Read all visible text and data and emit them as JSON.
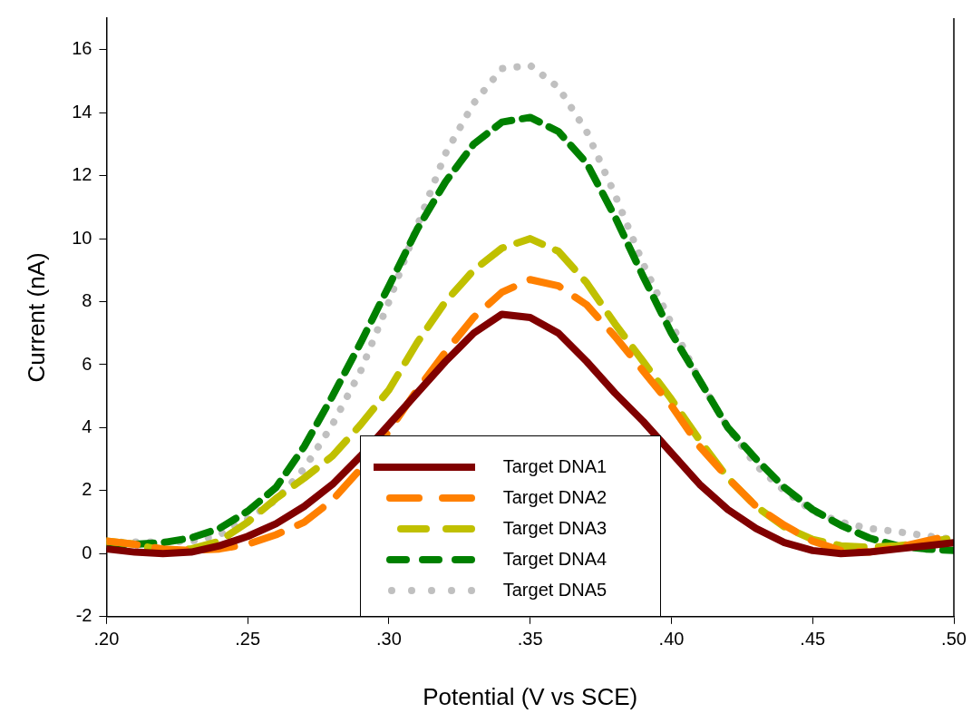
{
  "chart_data": {
    "type": "line",
    "xlabel": "Potential (V vs SCE)",
    "ylabel": "Current (nA)",
    "x": [
      0.2,
      0.21,
      0.22,
      0.23,
      0.24,
      0.25,
      0.26,
      0.27,
      0.28,
      0.29,
      0.3,
      0.31,
      0.32,
      0.33,
      0.34,
      0.35,
      0.36,
      0.37,
      0.38,
      0.39,
      0.4,
      0.41,
      0.42,
      0.43,
      0.44,
      0.45,
      0.46,
      0.47,
      0.48,
      0.49,
      0.5
    ],
    "series": [
      {
        "name": "Target DNA1",
        "color": "#800000",
        "line_style": "solid",
        "values": [
          0.15,
          0.05,
          0.0,
          0.05,
          0.25,
          0.55,
          0.95,
          1.5,
          2.2,
          3.1,
          4.1,
          5.1,
          6.1,
          7.0,
          7.6,
          7.5,
          7.0,
          6.1,
          5.1,
          4.2,
          3.2,
          2.2,
          1.4,
          0.8,
          0.35,
          0.1,
          0.0,
          0.05,
          0.15,
          0.25,
          0.35
        ]
      },
      {
        "name": "Target DNA2",
        "color": "#ff8000",
        "line_style": "dashed",
        "values": [
          0.4,
          0.3,
          0.15,
          0.1,
          0.15,
          0.3,
          0.6,
          1.0,
          1.7,
          2.7,
          3.9,
          5.2,
          6.4,
          7.5,
          8.3,
          8.7,
          8.5,
          7.9,
          6.9,
          5.8,
          4.7,
          3.4,
          2.4,
          1.5,
          0.9,
          0.4,
          0.1,
          0.05,
          0.2,
          0.4,
          0.6
        ]
      },
      {
        "name": "Target DNA3",
        "color": "#c0c000",
        "line_style": "dashed",
        "values": [
          0.4,
          0.3,
          0.1,
          0.15,
          0.4,
          1.0,
          1.75,
          2.4,
          3.1,
          4.1,
          5.2,
          6.7,
          8.0,
          9.0,
          9.7,
          10.0,
          9.6,
          8.6,
          7.3,
          6.1,
          4.9,
          3.6,
          2.4,
          1.5,
          0.85,
          0.45,
          0.25,
          0.2,
          0.25,
          0.35,
          0.5
        ]
      },
      {
        "name": "Target DNA4",
        "color": "#008000",
        "line_style": "dashed",
        "values": [
          0.3,
          0.3,
          0.35,
          0.5,
          0.8,
          1.35,
          2.1,
          3.4,
          5.0,
          6.7,
          8.5,
          10.3,
          11.8,
          13.0,
          13.7,
          13.85,
          13.4,
          12.4,
          10.7,
          8.8,
          7.0,
          5.5,
          4.0,
          3.0,
          2.1,
          1.4,
          0.9,
          0.5,
          0.25,
          0.15,
          0.1
        ]
      },
      {
        "name": "Target DNA5",
        "color": "#c0c0c0",
        "line_style": "dotted",
        "values": [
          0.35,
          0.37,
          0.37,
          0.4,
          0.6,
          1.1,
          1.7,
          2.7,
          4.1,
          5.8,
          8.0,
          10.4,
          12.7,
          14.3,
          15.4,
          15.5,
          14.8,
          13.4,
          11.4,
          9.2,
          7.3,
          5.5,
          4.0,
          2.8,
          2.0,
          1.35,
          1.0,
          0.8,
          0.7,
          0.57,
          0.45
        ]
      }
    ],
    "xlim": [
      0.2,
      0.5
    ],
    "xticks": [
      {
        "value": 0.2,
        "label": ".20"
      },
      {
        "value": 0.25,
        "label": ".25"
      },
      {
        "value": 0.3,
        "label": ".30"
      },
      {
        "value": 0.35,
        "label": ".35"
      },
      {
        "value": 0.4,
        "label": ".40"
      },
      {
        "value": 0.45,
        "label": ".45"
      },
      {
        "value": 0.5,
        "label": ".50"
      }
    ],
    "ylim": [
      -2,
      17
    ],
    "yticks": [
      -2,
      0,
      2,
      4,
      6,
      8,
      10,
      12,
      14,
      16
    ],
    "grid": false,
    "legend": "bottom",
    "marker": "none"
  }
}
